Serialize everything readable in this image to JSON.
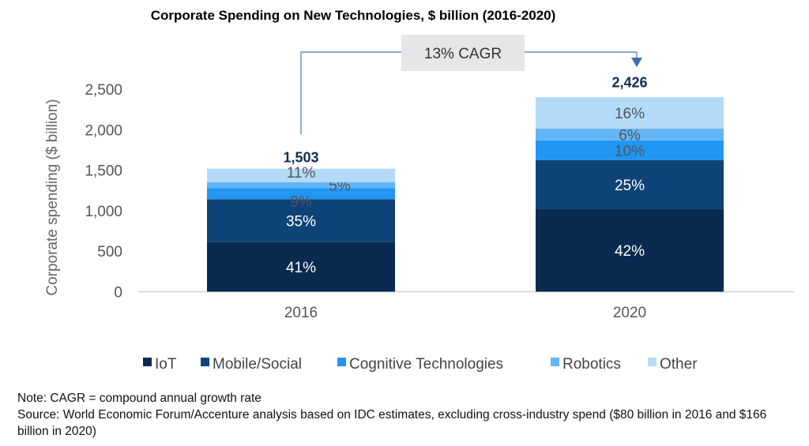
{
  "chart_data": {
    "type": "bar",
    "stacked": true,
    "title": "Corporate Spending on New Technologies, $ billion (2016-2020)",
    "ylabel": "Corporate spending ($ billion)",
    "xlabel": "",
    "ylim": [
      0,
      2500
    ],
    "yticks": [
      "0",
      "500",
      "1,000",
      "1,500",
      "2,000",
      "2,500"
    ],
    "ytick_values": [
      0,
      500,
      1000,
      1500,
      2000,
      2500
    ],
    "categories": [
      "2016",
      "2020"
    ],
    "totals": [
      1503,
      2426
    ],
    "total_labels": [
      "1,503",
      "2,426"
    ],
    "series": [
      {
        "name": "IoT",
        "color": "#0a2a4f",
        "text_color": "#ffffff",
        "percent": [
          41,
          42
        ],
        "labels": [
          "41%",
          "42%"
        ]
      },
      {
        "name": "Mobile/Social",
        "color": "#0e4377",
        "text_color": "#ffffff",
        "percent": [
          35,
          25
        ],
        "labels": [
          "35%",
          "25%"
        ]
      },
      {
        "name": "Cognitive Technologies",
        "color": "#2196f3",
        "text_color": "#555555",
        "percent": [
          9,
          10
        ],
        "labels": [
          "9%",
          "10%"
        ]
      },
      {
        "name": "Robotics",
        "color": "#64b5f6",
        "text_color": "#555555",
        "percent": [
          5,
          6
        ],
        "labels": [
          "5%",
          "6%"
        ]
      },
      {
        "name": "Other",
        "color": "#b3dbf8",
        "text_color": "#555555",
        "percent": [
          11,
          16
        ],
        "labels": [
          "11%",
          "16%"
        ]
      }
    ],
    "annotation": {
      "label": "13% CAGR"
    },
    "legend": "bottom",
    "grid": false
  },
  "notes": {
    "note": "Note: CAGR = compound annual growth rate",
    "source": "Source: World Economic Forum/Accenture analysis based on IDC estimates, excluding cross-industry spend ($80 billion in 2016 and $166 billion in 2020)"
  }
}
